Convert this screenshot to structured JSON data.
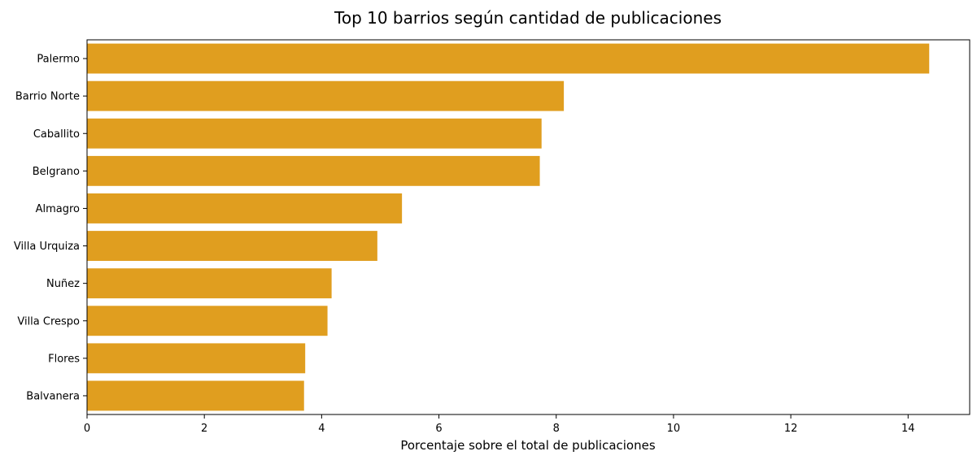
{
  "chart_data": {
    "type": "bar",
    "orientation": "horizontal",
    "title": "Top 10 barrios según cantidad de publicaciones",
    "xlabel": "Porcentaje sobre el total de publicaciones",
    "ylabel": "",
    "categories": [
      "Palermo",
      "Barrio Norte",
      "Caballito",
      "Belgrano",
      "Almagro",
      "Villa Urquiza",
      "Nuñez",
      "Villa Crespo",
      "Flores",
      "Balvanera"
    ],
    "values": [
      14.36,
      8.13,
      7.75,
      7.72,
      5.37,
      4.95,
      4.17,
      4.1,
      3.72,
      3.7
    ],
    "xlim": [
      0,
      15.05
    ],
    "xticks": [
      0,
      2,
      4,
      6,
      8,
      10,
      12,
      14
    ],
    "bar_color": "#e09e1f",
    "grid": false
  }
}
